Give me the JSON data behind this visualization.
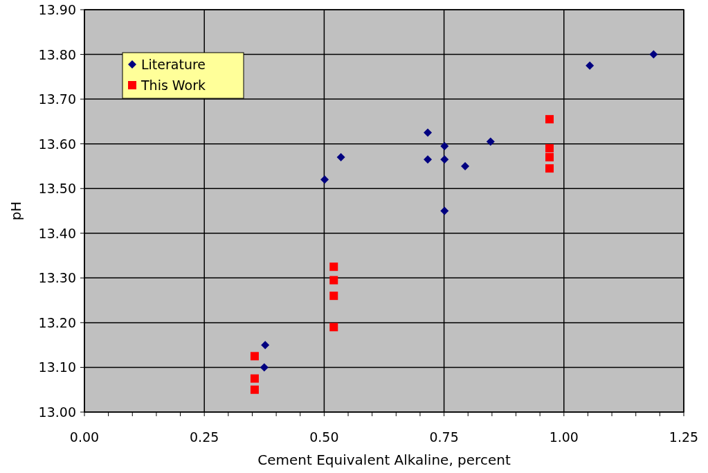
{
  "chart_data": {
    "type": "scatter",
    "xlabel": "Cement Equivalent Alkaline, percent",
    "ylabel": "pH",
    "xlim": [
      0,
      1.25
    ],
    "ylim": [
      13.0,
      13.9
    ],
    "xticks": [
      {
        "value": 0,
        "label": "0.00"
      },
      {
        "value": 0.05,
        "label": null
      },
      {
        "value": 0.1,
        "label": null
      },
      {
        "value": 0.15,
        "label": null
      },
      {
        "value": 0.2,
        "label": null
      },
      {
        "value": 0.25,
        "label": "0.25"
      },
      {
        "value": 0.3,
        "label": null
      },
      {
        "value": 0.35,
        "label": null
      },
      {
        "value": 0.4,
        "label": null
      },
      {
        "value": 0.45,
        "label": null
      },
      {
        "value": 0.5,
        "label": "0.50"
      },
      {
        "value": 0.55,
        "label": null
      },
      {
        "value": 0.6,
        "label": null
      },
      {
        "value": 0.65,
        "label": null
      },
      {
        "value": 0.7,
        "label": null
      },
      {
        "value": 0.75,
        "label": "0.75"
      },
      {
        "value": 0.8,
        "label": null
      },
      {
        "value": 0.85,
        "label": null
      },
      {
        "value": 0.9,
        "label": null
      },
      {
        "value": 0.95,
        "label": null
      },
      {
        "value": 1,
        "label": "1.00"
      },
      {
        "value": 1.05,
        "label": null
      },
      {
        "value": 1.1,
        "label": null
      },
      {
        "value": 1.15,
        "label": null
      },
      {
        "value": 1.2,
        "label": null
      },
      {
        "value": 1.25,
        "label": "1.25"
      }
    ],
    "yticks": [
      {
        "value": 13.0,
        "label": "13.00"
      },
      {
        "value": 13.1,
        "label": "13.10"
      },
      {
        "value": 13.2,
        "label": "13.20"
      },
      {
        "value": 13.3,
        "label": "13.30"
      },
      {
        "value": 13.4,
        "label": "13.40"
      },
      {
        "value": 13.5,
        "label": "13.50"
      },
      {
        "value": 13.6,
        "label": "13.60"
      },
      {
        "value": 13.7,
        "label": "13.70"
      },
      {
        "value": 13.8,
        "label": "13.80"
      },
      {
        "value": 13.9,
        "label": "13.90"
      }
    ],
    "grid": true,
    "legend": "top left",
    "series": [
      {
        "name": "Literature",
        "color": "#000080",
        "marker": "diamond",
        "x": [
          0.377,
          0.375,
          0.501,
          0.535,
          0.716,
          0.716,
          0.751,
          0.751,
          0.751,
          0.794,
          0.847,
          1.054,
          1.187
        ],
        "values": [
          13.15,
          13.1,
          13.52,
          13.57,
          13.625,
          13.565,
          13.595,
          13.565,
          13.45,
          13.55,
          13.605,
          13.775,
          13.8
        ]
      },
      {
        "name": "This Work",
        "color": "#ff0000",
        "marker": "square",
        "x": [
          0.355,
          0.355,
          0.355,
          0.52,
          0.52,
          0.52,
          0.52,
          0.97,
          0.97,
          0.97,
          0.97
        ],
        "values": [
          13.125,
          13.075,
          13.05,
          13.325,
          13.295,
          13.26,
          13.19,
          13.655,
          13.59,
          13.57,
          13.545
        ]
      }
    ]
  }
}
